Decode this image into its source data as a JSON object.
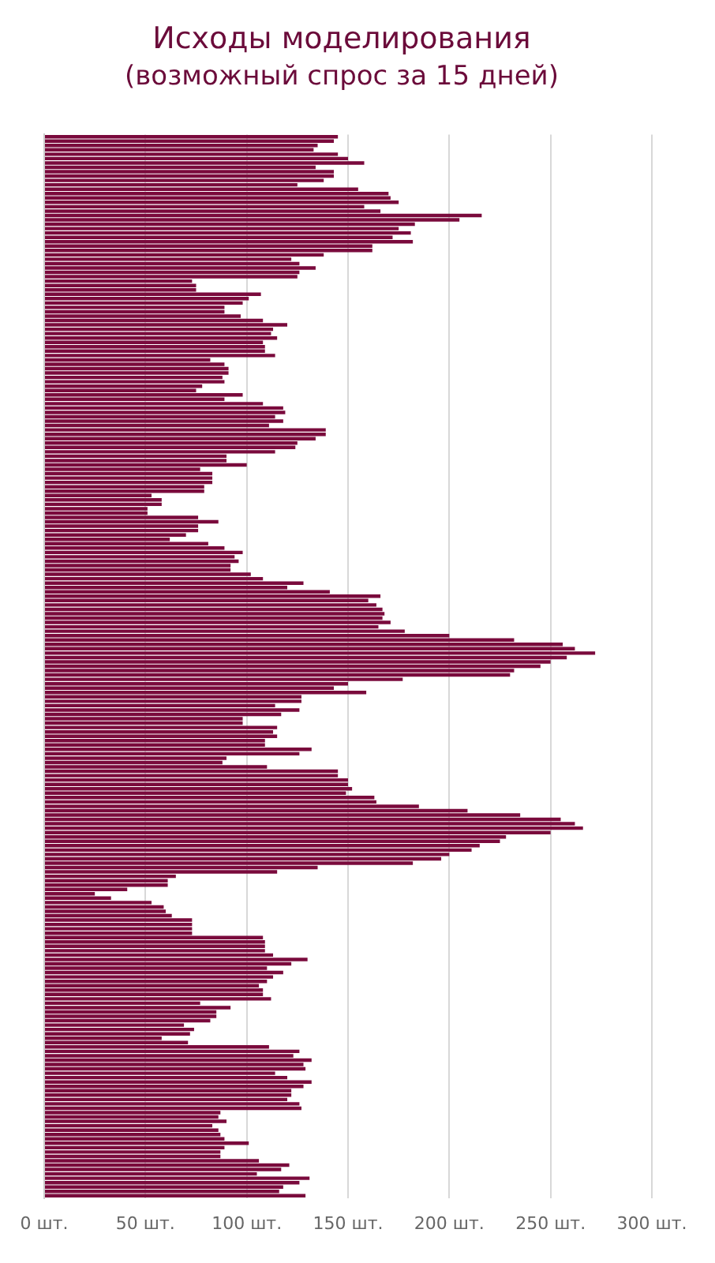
{
  "chart_data": {
    "type": "bar",
    "orientation": "horizontal",
    "title": "Исходы моделирования",
    "subtitle": "(возможный спрос за 15 дней)",
    "categories": [
      null,
      null,
      null,
      null,
      null,
      null,
      null,
      null,
      null,
      null,
      null,
      null,
      null,
      null,
      null,
      null,
      null,
      null,
      null,
      null,
      null,
      null,
      null,
      null,
      null,
      null,
      null,
      null,
      null,
      null,
      null,
      null,
      null,
      null,
      null,
      null,
      null,
      null,
      null,
      null,
      null,
      null,
      null,
      null,
      null,
      null,
      null,
      null,
      null,
      null,
      null,
      null,
      null,
      null,
      null,
      null,
      null,
      null,
      null,
      null,
      null,
      null,
      null,
      null,
      null,
      null,
      null,
      null,
      null,
      null,
      null,
      null,
      null,
      null,
      null,
      null,
      null,
      null,
      null,
      null,
      null,
      null,
      null,
      null,
      null,
      null,
      null,
      null,
      null,
      null,
      null,
      null,
      null,
      null,
      null,
      null,
      null,
      null,
      null,
      null,
      null,
      null,
      null,
      null,
      null,
      null,
      null,
      null,
      null,
      null,
      null,
      null,
      null,
      null,
      null,
      null,
      null,
      null,
      null,
      null,
      null,
      null,
      null,
      null,
      null,
      null,
      null,
      null,
      null,
      null,
      null,
      null,
      null,
      null,
      null,
      null,
      null,
      null,
      null,
      null,
      null,
      null,
      null,
      null,
      null,
      null,
      null,
      null,
      null,
      null,
      null,
      null,
      null,
      null,
      null,
      null,
      null,
      null,
      null,
      null,
      null,
      null,
      null,
      null,
      null,
      null,
      null,
      null,
      null,
      null,
      null,
      null,
      null,
      null,
      null,
      null,
      null,
      null,
      null,
      null,
      null,
      null,
      null,
      null,
      null,
      null,
      null,
      null,
      null,
      null,
      null,
      null,
      null,
      null,
      null,
      null,
      null,
      null,
      null,
      null,
      null,
      null,
      null,
      null,
      null,
      null,
      null,
      null,
      null,
      null,
      null,
      null,
      null,
      null,
      null,
      null,
      null,
      null,
      null,
      null,
      null,
      null,
      null,
      null,
      null,
      null,
      null,
      null,
      null,
      null,
      null,
      null,
      null,
      null,
      null,
      null,
      null,
      null,
      null,
      null,
      null,
      null,
      null
    ],
    "values": [
      145,
      143,
      135,
      133,
      145,
      150,
      158,
      134,
      143,
      143,
      138,
      125,
      155,
      170,
      171,
      175,
      158,
      166,
      216,
      205,
      183,
      175,
      181,
      172,
      182,
      162,
      162,
      138,
      122,
      126,
      134,
      126,
      125,
      73,
      75,
      75,
      107,
      101,
      98,
      89,
      89,
      97,
      108,
      120,
      113,
      112,
      115,
      108,
      109,
      109,
      114,
      82,
      89,
      91,
      91,
      88,
      89,
      78,
      75,
      98,
      89,
      108,
      118,
      119,
      114,
      118,
      111,
      139,
      139,
      134,
      125,
      124,
      114,
      90,
      90,
      100,
      77,
      83,
      83,
      83,
      79,
      79,
      53,
      58,
      58,
      51,
      51,
      76,
      86,
      76,
      76,
      70,
      62,
      81,
      89,
      98,
      94,
      96,
      92,
      92,
      102,
      108,
      128,
      120,
      141,
      166,
      160,
      164,
      167,
      168,
      167,
      171,
      165,
      178,
      200,
      232,
      256,
      262,
      272,
      258,
      250,
      245,
      232,
      230,
      177,
      150,
      143,
      159,
      127,
      127,
      114,
      126,
      117,
      98,
      98,
      115,
      113,
      115,
      109,
      109,
      132,
      126,
      90,
      88,
      110,
      145,
      145,
      150,
      150,
      152,
      149,
      163,
      164,
      185,
      209,
      235,
      255,
      262,
      266,
      250,
      228,
      225,
      215,
      211,
      200,
      196,
      182,
      135,
      115,
      65,
      61,
      61,
      41,
      25,
      33,
      53,
      59,
      60,
      63,
      73,
      73,
      73,
      73,
      108,
      109,
      109,
      109,
      113,
      130,
      122,
      110,
      118,
      113,
      110,
      106,
      108,
      108,
      112,
      77,
      92,
      85,
      85,
      82,
      69,
      74,
      72,
      58,
      71,
      111,
      126,
      123,
      132,
      128,
      129,
      114,
      120,
      132,
      128,
      122,
      122,
      120,
      126,
      127,
      87,
      86,
      90,
      83,
      86,
      87,
      89,
      101,
      89,
      87,
      87,
      106,
      121,
      117,
      105,
      131,
      126,
      118,
      116,
      129
    ],
    "color": "#7a0a3c",
    "xlim": [
      0,
      300
    ],
    "xticks": [
      {
        "value": 0,
        "label": "0 шт."
      },
      {
        "value": 50,
        "label": "50 шт."
      },
      {
        "value": 100,
        "label": "100 шт."
      },
      {
        "value": 150,
        "label": "150 шт."
      },
      {
        "value": 200,
        "label": "200 шт."
      },
      {
        "value": 250,
        "label": "250 шт."
      },
      {
        "value": 300,
        "label": "300 шт."
      }
    ],
    "grid": "x",
    "tick_labels": "x"
  }
}
